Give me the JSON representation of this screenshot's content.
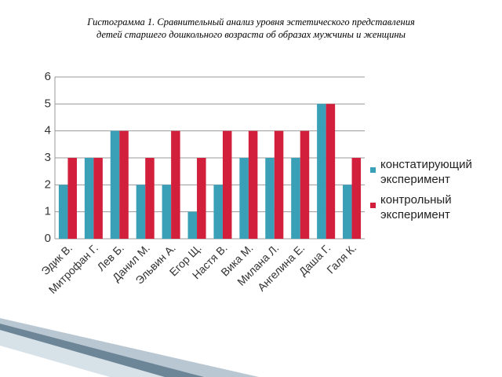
{
  "chart_data": {
    "type": "bar",
    "title": "Гистограмма 1. Сравнительный анализ уровня эстетического представления детей старшего дошкольного возраста об образах мужчины и женщины",
    "categories": [
      "Эдик В.",
      "Митрофан Г.",
      "Лев Б.",
      "Данил М.",
      "Эльвин А.",
      "Егор Щ.",
      "Настя В.",
      "Вика М.",
      "Милана Л.",
      "Ангелина Е.",
      "Даша Г.",
      "Галя К."
    ],
    "series": [
      {
        "name": "констатирующий эксперимент",
        "color": "#3aa0b8",
        "values": [
          2,
          3,
          4,
          2,
          2,
          1,
          2,
          3,
          3,
          3,
          5,
          2
        ]
      },
      {
        "name": "контрольный эксперимент",
        "color": "#d21f3c",
        "values": [
          3,
          3,
          4,
          3,
          4,
          3,
          4,
          4,
          4,
          4,
          5,
          3
        ]
      }
    ],
    "ylim": [
      0,
      6
    ],
    "yticks": [
      0,
      1,
      2,
      3,
      4,
      5,
      6
    ],
    "grid": true
  }
}
